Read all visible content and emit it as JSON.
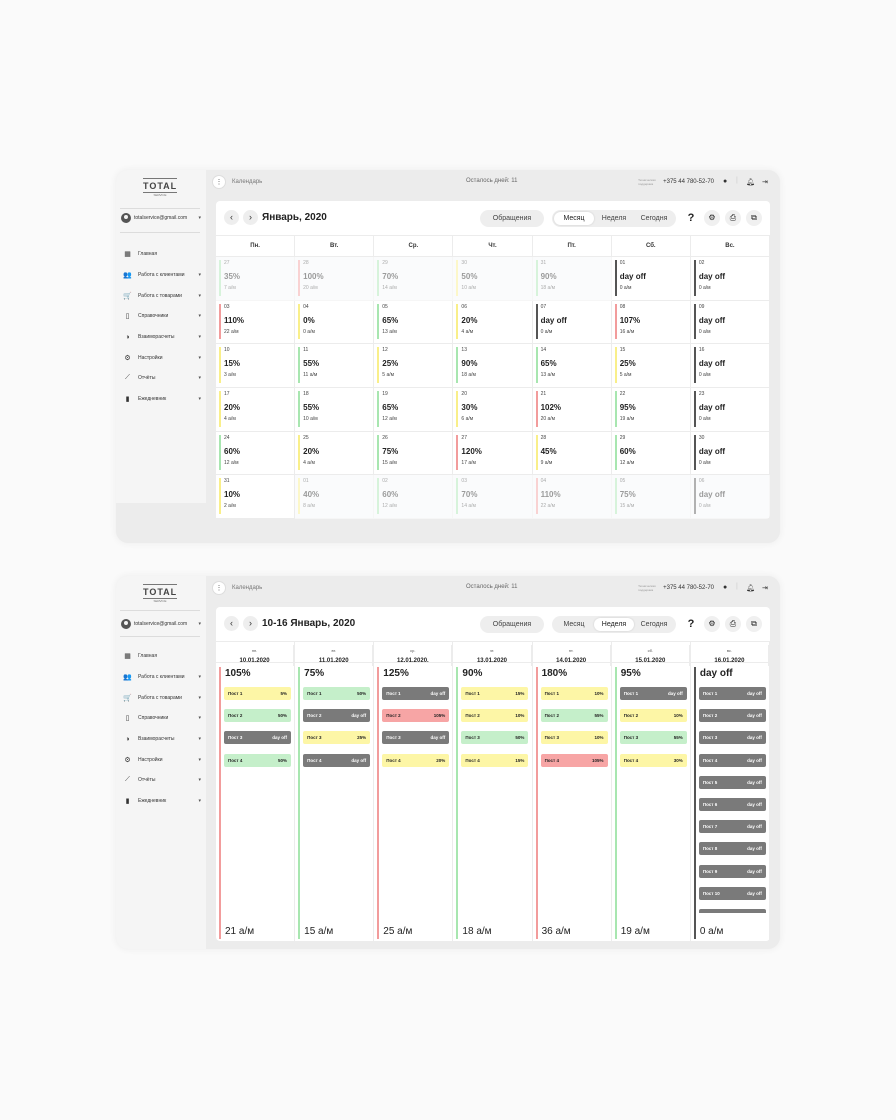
{
  "app": {
    "logo": "TOTAL",
    "logo_sub": "SERVICE",
    "user_email": "totalservice@gmail.com",
    "breadcrumb": "Календарь",
    "days_left": "Осталось дней: 11",
    "support_label": "Техническая поддержка",
    "phone": "+375 44 780-52-70",
    "nav": [
      {
        "label": "Главная",
        "icon": "dashboard-icon",
        "glyph": "▦",
        "expand": false
      },
      {
        "label": "Работа с клиентами",
        "icon": "people-icon",
        "glyph": "👥",
        "expand": true
      },
      {
        "label": "Работа с товарами",
        "icon": "cart-icon",
        "glyph": "🛒",
        "expand": true
      },
      {
        "label": "Справочники",
        "icon": "book-icon",
        "glyph": "▯",
        "expand": true
      },
      {
        "label": "Взаиморасчеты",
        "icon": "pie-chart-icon",
        "glyph": "◑",
        "expand": true
      },
      {
        "label": "Настройки",
        "icon": "gear-icon",
        "glyph": "⚙",
        "expand": true
      },
      {
        "label": "Отчёты",
        "icon": "trend-icon",
        "glyph": "⟋",
        "expand": true
      },
      {
        "label": "Ежедневник",
        "icon": "notebook-icon",
        "glyph": "▮",
        "expand": true
      }
    ],
    "requests_label": "Обращения",
    "view_modes": [
      "Месяц",
      "Неделя",
      "Сегодня"
    ],
    "help_glyph": "?",
    "colors": {
      "yellow": "#f9ef8a",
      "green": "#a8e6b0",
      "red": "#f29c9c",
      "dark": "#555555"
    }
  },
  "month": {
    "title": "Январь, 2020",
    "active_mode": "Месяц",
    "weekdays": [
      "Пн.",
      "Вт.",
      "Ср.",
      "Чт.",
      "Пт.",
      "Сб.",
      "Вс."
    ],
    "cells": [
      {
        "d": "27",
        "p": "35%",
        "a": "7 а/м",
        "c": "green",
        "f": true
      },
      {
        "d": "28",
        "p": "100%",
        "a": "20 а/м",
        "c": "red",
        "f": true
      },
      {
        "d": "29",
        "p": "70%",
        "a": "14 а/м",
        "c": "green",
        "f": true
      },
      {
        "d": "30",
        "p": "50%",
        "a": "10 а/м",
        "c": "yellow",
        "f": true
      },
      {
        "d": "31",
        "p": "90%",
        "a": "18 а/м",
        "c": "green",
        "f": true
      },
      {
        "d": "01",
        "p": "day off",
        "a": "0 а/м",
        "c": "dark",
        "f": false
      },
      {
        "d": "02",
        "p": "day off",
        "a": "0 а/м",
        "c": "dark",
        "f": false
      },
      {
        "d": "03",
        "p": "110%",
        "a": "22 а/м",
        "c": "red",
        "f": false
      },
      {
        "d": "04",
        "p": "0%",
        "a": "0 а/м",
        "c": "yellow",
        "f": false
      },
      {
        "d": "05",
        "p": "65%",
        "a": "13 а/м",
        "c": "green",
        "f": false
      },
      {
        "d": "06",
        "p": "20%",
        "a": "4 а/м",
        "c": "yellow",
        "f": false
      },
      {
        "d": "07",
        "p": "day off",
        "a": "0 а/м",
        "c": "dark",
        "f": false
      },
      {
        "d": "08",
        "p": "107%",
        "a": "16 а/м",
        "c": "red",
        "f": false
      },
      {
        "d": "09",
        "p": "day off",
        "a": "0 а/м",
        "c": "dark",
        "f": false
      },
      {
        "d": "10",
        "p": "15%",
        "a": "3 а/м",
        "c": "yellow",
        "f": false
      },
      {
        "d": "11",
        "p": "55%",
        "a": "11 а/м",
        "c": "green",
        "f": false
      },
      {
        "d": "12",
        "p": "25%",
        "a": "5 а/м",
        "c": "yellow",
        "f": false
      },
      {
        "d": "13",
        "p": "90%",
        "a": "18 а/м",
        "c": "green",
        "f": false
      },
      {
        "d": "14",
        "p": "65%",
        "a": "13 а/м",
        "c": "green",
        "f": false
      },
      {
        "d": "15",
        "p": "25%",
        "a": "5 а/м",
        "c": "yellow",
        "f": false
      },
      {
        "d": "16",
        "p": "day off",
        "a": "0 а/м",
        "c": "dark",
        "f": false
      },
      {
        "d": "17",
        "p": "20%",
        "a": "4 а/м",
        "c": "yellow",
        "f": false
      },
      {
        "d": "18",
        "p": "55%",
        "a": "10 а/м",
        "c": "green",
        "f": false
      },
      {
        "d": "19",
        "p": "65%",
        "a": "12 а/м",
        "c": "green",
        "f": false
      },
      {
        "d": "20",
        "p": "30%",
        "a": "6 а/м",
        "c": "yellow",
        "f": false
      },
      {
        "d": "21",
        "p": "102%",
        "a": "20 а/м",
        "c": "red",
        "f": false
      },
      {
        "d": "22",
        "p": "95%",
        "a": "19 а/м",
        "c": "green",
        "f": false
      },
      {
        "d": "23",
        "p": "day off",
        "a": "0 а/м",
        "c": "dark",
        "f": false
      },
      {
        "d": "24",
        "p": "60%",
        "a": "12 а/м",
        "c": "green",
        "f": false
      },
      {
        "d": "25",
        "p": "20%",
        "a": "4 а/м",
        "c": "yellow",
        "f": false
      },
      {
        "d": "26",
        "p": "75%",
        "a": "15 а/м",
        "c": "green",
        "f": false
      },
      {
        "d": "27",
        "p": "120%",
        "a": "17 а/м",
        "c": "red",
        "f": false
      },
      {
        "d": "28",
        "p": "45%",
        "a": "9 а/м",
        "c": "yellow",
        "f": false
      },
      {
        "d": "29",
        "p": "60%",
        "a": "12 а/м",
        "c": "green",
        "f": false
      },
      {
        "d": "30",
        "p": "day off",
        "a": "0 а/м",
        "c": "dark",
        "f": false
      },
      {
        "d": "31",
        "p": "10%",
        "a": "2 а/м",
        "c": "yellow",
        "f": false
      },
      {
        "d": "01",
        "p": "40%",
        "a": "8 а/м",
        "c": "yellow",
        "f": true
      },
      {
        "d": "02",
        "p": "60%",
        "a": "12 а/м",
        "c": "green",
        "f": true
      },
      {
        "d": "03",
        "p": "70%",
        "a": "14 а/м",
        "c": "green",
        "f": true
      },
      {
        "d": "04",
        "p": "110%",
        "a": "22 а/м",
        "c": "red",
        "f": true
      },
      {
        "d": "05",
        "p": "75%",
        "a": "15 а/м",
        "c": "green",
        "f": true
      },
      {
        "d": "06",
        "p": "day off",
        "a": "0 а/м",
        "c": "dark",
        "f": true
      }
    ]
  },
  "week": {
    "title": "10-16 Январь, 2020",
    "active_mode": "Неделя",
    "days": [
      {
        "wd": "пн.",
        "date": "10.01.2020",
        "pct": "105%",
        "am": "21 а/м",
        "c": "red",
        "posts": [
          {
            "n": "Пост 1",
            "v": "5%",
            "c": "y"
          },
          {
            "n": "Пост 2",
            "v": "50%",
            "c": "g"
          },
          {
            "n": "Пост 3",
            "v": "day off",
            "c": "k"
          },
          {
            "n": "Пост 4",
            "v": "50%",
            "c": "g"
          }
        ]
      },
      {
        "wd": "вт.",
        "date": "11.01.2020",
        "pct": "75%",
        "am": "15 а/м",
        "c": "green",
        "posts": [
          {
            "n": "Пост 1",
            "v": "50%",
            "c": "g"
          },
          {
            "n": "Пост 2",
            "v": "day off",
            "c": "k"
          },
          {
            "n": "Пост 3",
            "v": "25%",
            "c": "y"
          },
          {
            "n": "Пост 4",
            "v": "day off",
            "c": "k"
          }
        ]
      },
      {
        "wd": "ср.",
        "date": "12.01.2020.",
        "pct": "125%",
        "am": "25 а/м",
        "c": "red",
        "posts": [
          {
            "n": "Пост 1",
            "v": "day off",
            "c": "k"
          },
          {
            "n": "Пост 2",
            "v": "105%",
            "c": "r"
          },
          {
            "n": "Пост 3",
            "v": "day off",
            "c": "k"
          },
          {
            "n": "Пост 4",
            "v": "20%",
            "c": "y"
          }
        ]
      },
      {
        "wd": "чт.",
        "date": "13.01.2020",
        "pct": "90%",
        "am": "18 а/м",
        "c": "green",
        "posts": [
          {
            "n": "Пост 1",
            "v": "15%",
            "c": "y"
          },
          {
            "n": "Пост 2",
            "v": "10%",
            "c": "y"
          },
          {
            "n": "Пост 3",
            "v": "50%",
            "c": "g"
          },
          {
            "n": "Пост 4",
            "v": "15%",
            "c": "y"
          }
        ]
      },
      {
        "wd": "пт.",
        "date": "14.01.2020",
        "pct": "180%",
        "am": "36 а/м",
        "c": "red",
        "posts": [
          {
            "n": "Пост 1",
            "v": "10%",
            "c": "y"
          },
          {
            "n": "Пост 2",
            "v": "55%",
            "c": "g"
          },
          {
            "n": "Пост 3",
            "v": "10%",
            "c": "y"
          },
          {
            "n": "Пост 4",
            "v": "105%",
            "c": "r"
          }
        ]
      },
      {
        "wd": "сб.",
        "date": "15.01.2020",
        "pct": "95%",
        "am": "19 а/м",
        "c": "green",
        "posts": [
          {
            "n": "Пост 1",
            "v": "day off",
            "c": "k"
          },
          {
            "n": "Пост 2",
            "v": "10%",
            "c": "y"
          },
          {
            "n": "Пост 3",
            "v": "55%",
            "c": "g"
          },
          {
            "n": "Пост 4",
            "v": "30%",
            "c": "y"
          }
        ]
      },
      {
        "wd": "вс.",
        "date": "16.01.2020",
        "pct": "day off",
        "am": "0 а/м",
        "c": "dark",
        "posts": [
          {
            "n": "Пост 1",
            "v": "day off",
            "c": "k"
          },
          {
            "n": "Пост 2",
            "v": "day off",
            "c": "k"
          },
          {
            "n": "Пост 3",
            "v": "day off",
            "c": "k"
          },
          {
            "n": "Пост 4",
            "v": "day off",
            "c": "k"
          },
          {
            "n": "Пост 5",
            "v": "day off",
            "c": "k"
          },
          {
            "n": "Пост 6",
            "v": "day off",
            "c": "k"
          },
          {
            "n": "Пост 7",
            "v": "day off",
            "c": "k"
          },
          {
            "n": "Пост 8",
            "v": "day off",
            "c": "k"
          },
          {
            "n": "Пост 9",
            "v": "day off",
            "c": "k"
          },
          {
            "n": "Пост 10",
            "v": "day off",
            "c": "k"
          },
          {
            "n": "Пост 11",
            "v": "day off",
            "c": "k"
          }
        ]
      }
    ]
  }
}
